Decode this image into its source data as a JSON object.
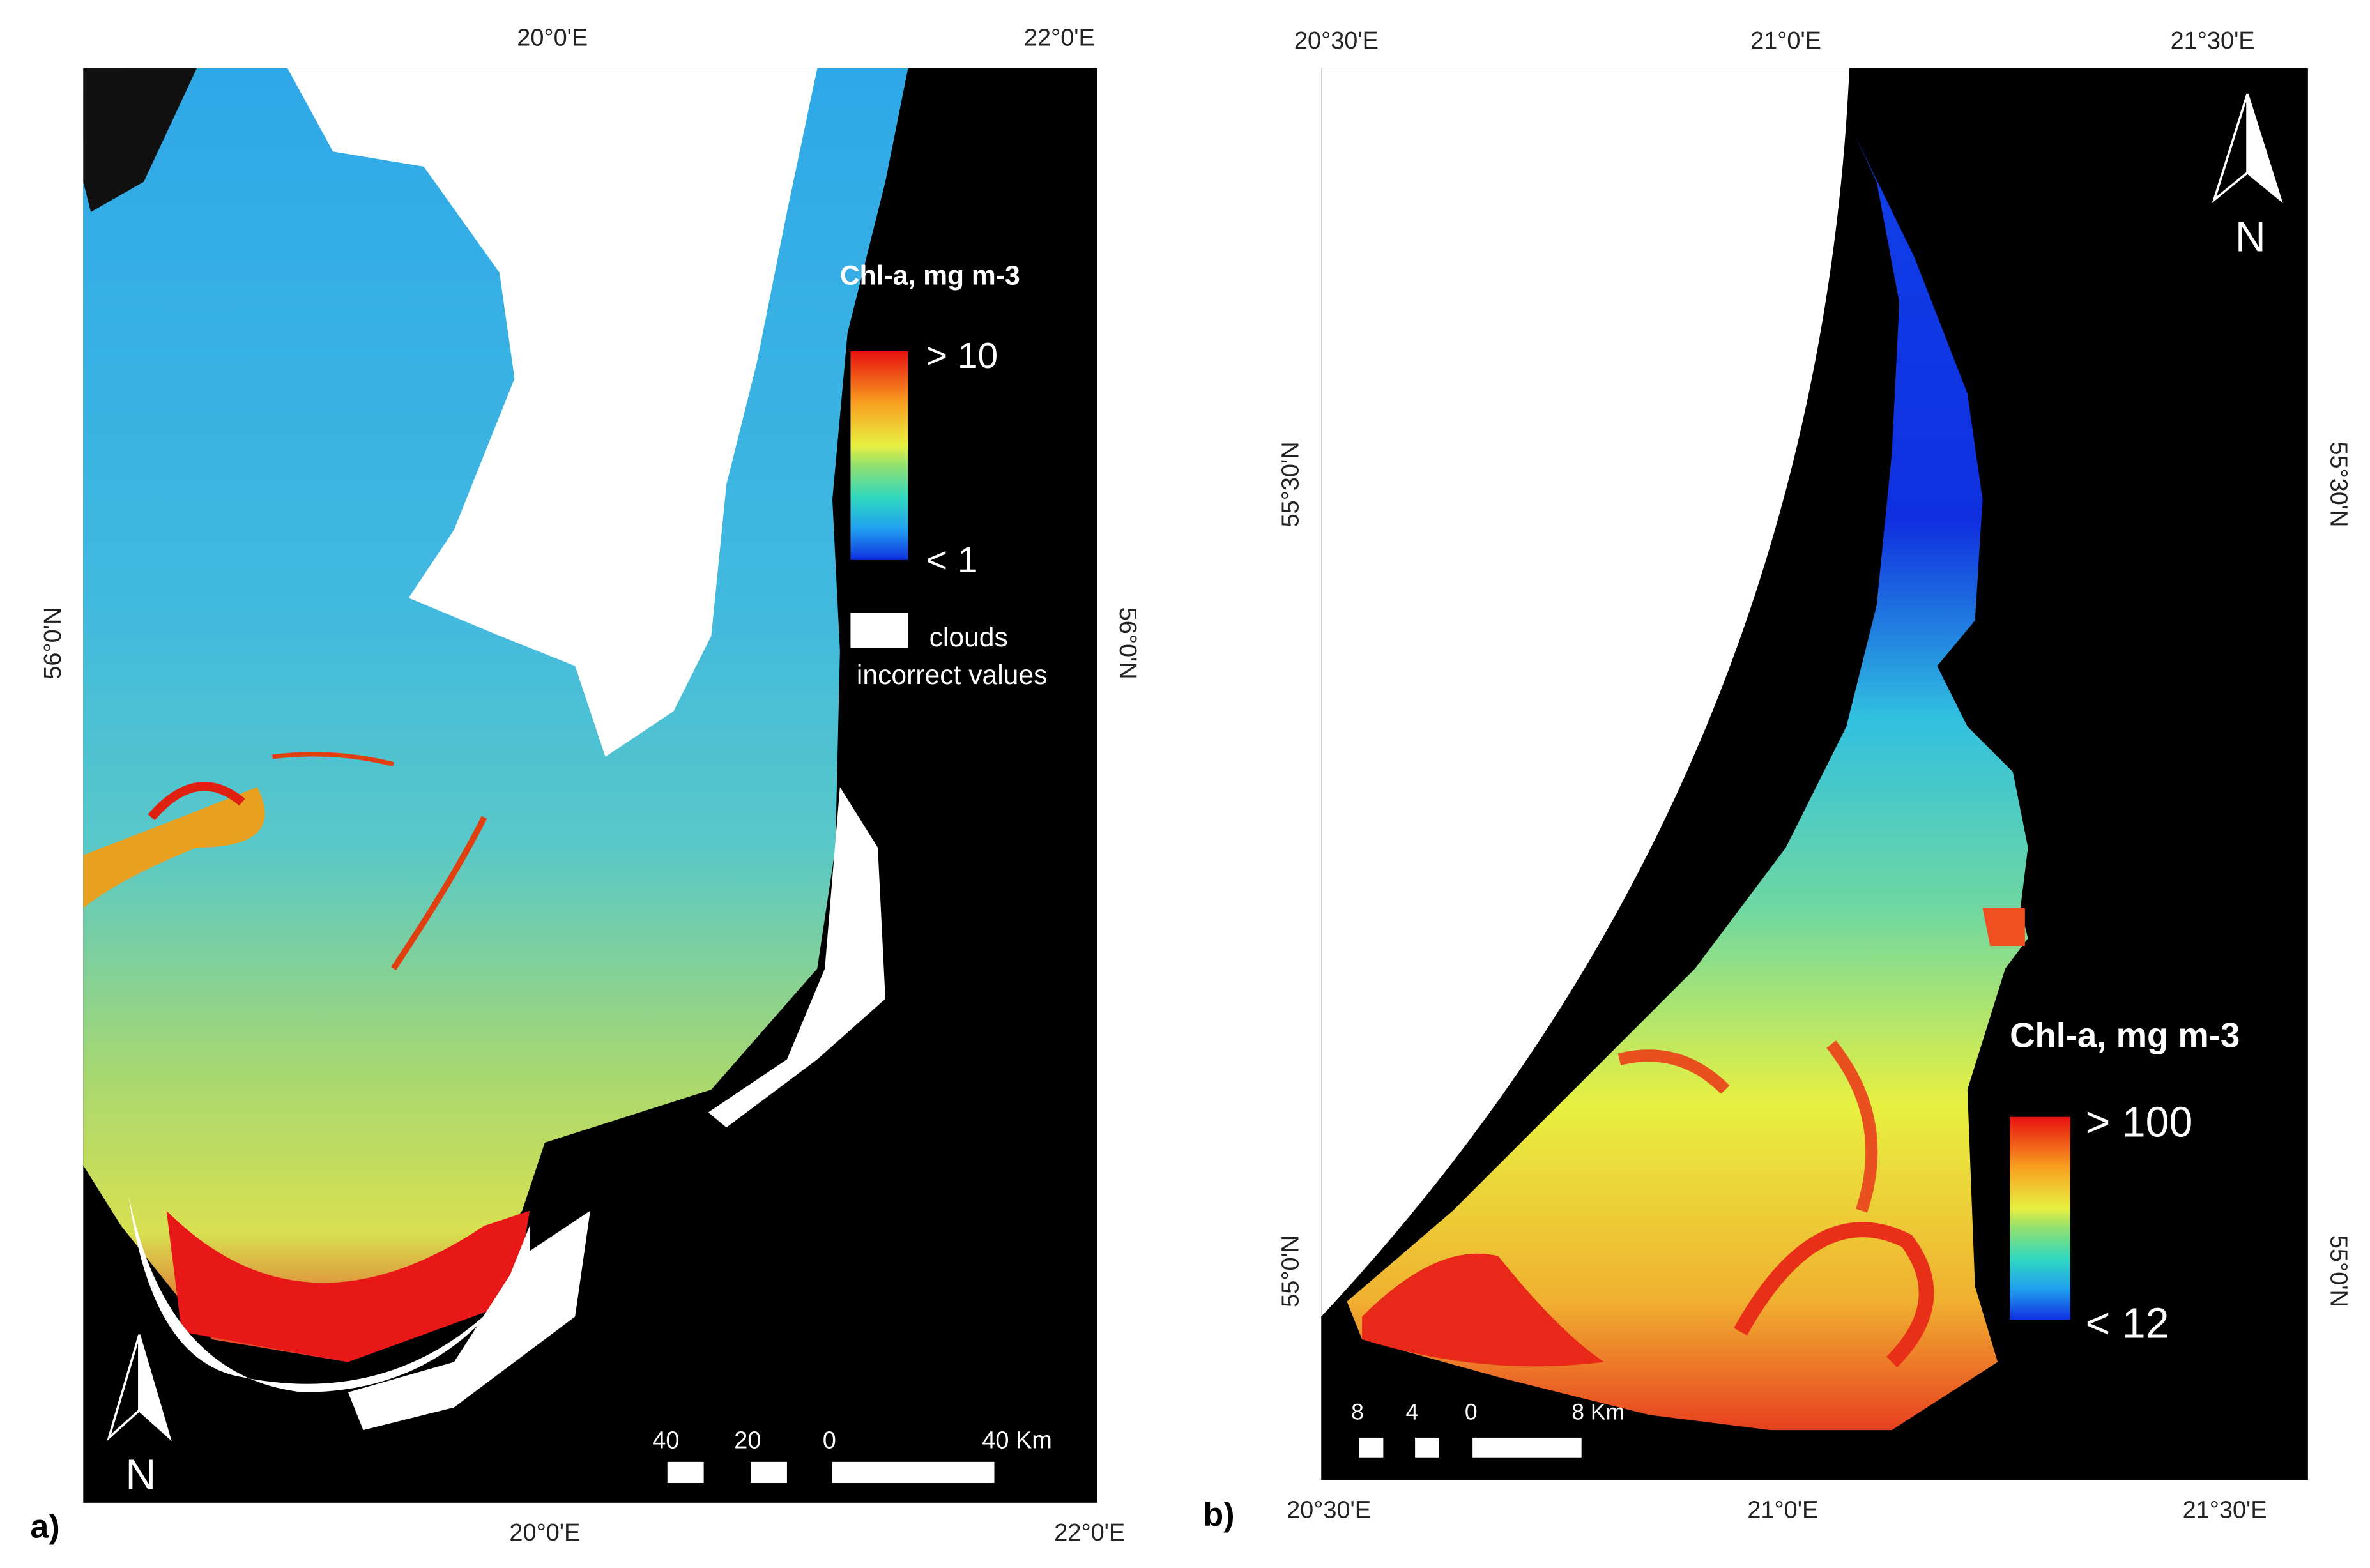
{
  "panels": [
    {
      "label": "a)",
      "top_ticks": [
        "20°0'E",
        "22°0'E"
      ],
      "bottom_ticks": [
        "20°0'E",
        "22°0'E"
      ],
      "left_ticks": [
        "56°0'N"
      ],
      "right_ticks": [
        "56°0'N"
      ],
      "legend": {
        "title": "Chl-a, mg m-3",
        "max": "> 10",
        "min": "< 1",
        "clouds": "clouds",
        "incorrect": "incorrect values"
      },
      "scale": [
        "40",
        "20",
        "0",
        "40 Km"
      ],
      "north": "N"
    },
    {
      "label": "b)",
      "top_ticks": [
        "20°30'E",
        "21°0'E",
        "21°30'E"
      ],
      "bottom_ticks": [
        "20°30'E",
        "21°0'E",
        "21°30'E"
      ],
      "left_ticks": [
        "55°30'N",
        "55°0'N"
      ],
      "right_ticks": [
        "55°30'N",
        "55°0'N"
      ],
      "legend": {
        "title": "Chl-a, mg m-3",
        "max": "> 100",
        "min": "< 12"
      },
      "scale": [
        "8",
        "4",
        "0",
        "8 Km"
      ],
      "north": "N"
    }
  ]
}
